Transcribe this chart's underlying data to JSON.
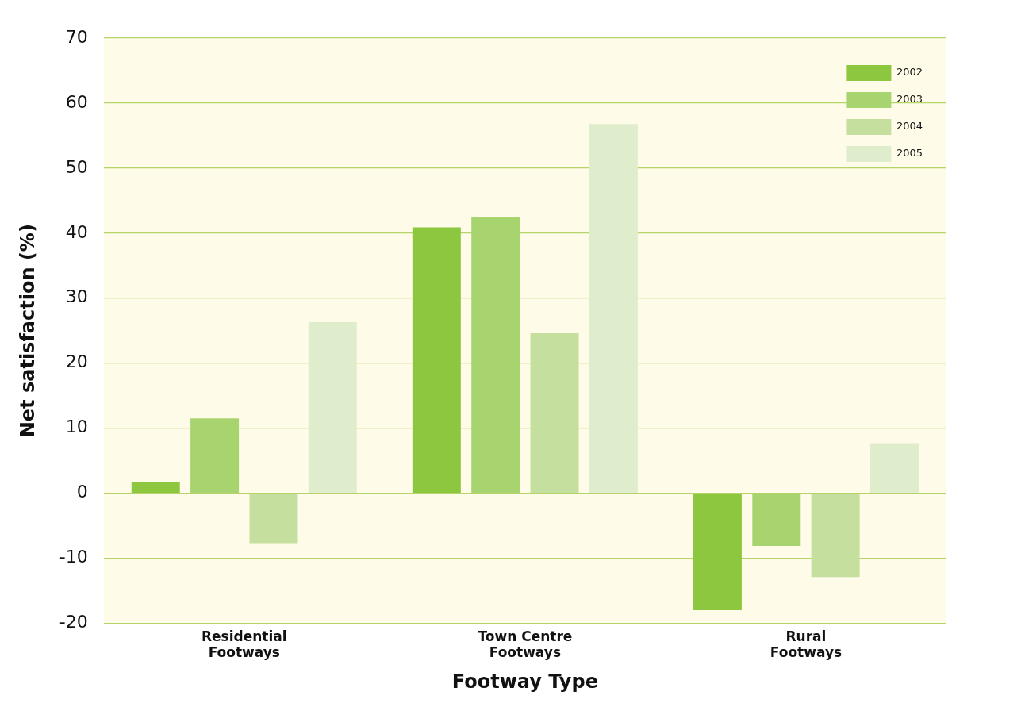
{
  "chart_data": {
    "type": "bar",
    "xlabel": "Footway Type",
    "ylabel": "Net satisfaction (%)",
    "categories": [
      "Residential Footways",
      "Town Centre Footways",
      "Rural Footways"
    ],
    "series": [
      {
        "name": "2002",
        "color": "#8dc63f",
        "values": [
          1.7,
          40.9,
          -18
        ]
      },
      {
        "name": "2003",
        "color": "#a8d46f",
        "values": [
          11.5,
          42.5,
          -8.1
        ]
      },
      {
        "name": "2004",
        "color": "#c5e09e",
        "values": [
          -7.7,
          24.6,
          -12.9
        ]
      },
      {
        "name": "2005",
        "color": "#e0edcc",
        "values": [
          26.3,
          56.8,
          7.7
        ]
      }
    ],
    "ylim": [
      -20,
      70
    ],
    "yticks": [
      -20,
      -10,
      0,
      10,
      20,
      30,
      40,
      50,
      60,
      70
    ],
    "grid": "y",
    "legend": "top right"
  }
}
